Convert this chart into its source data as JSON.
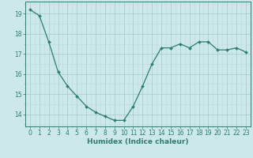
{
  "x": [
    0,
    1,
    2,
    3,
    4,
    5,
    6,
    7,
    8,
    9,
    10,
    11,
    12,
    13,
    14,
    15,
    16,
    17,
    18,
    19,
    20,
    21,
    22,
    23
  ],
  "y": [
    19.2,
    18.9,
    17.6,
    16.1,
    15.4,
    14.9,
    14.4,
    14.1,
    13.9,
    13.7,
    13.7,
    14.4,
    15.4,
    16.5,
    17.3,
    17.3,
    17.5,
    17.3,
    17.6,
    17.6,
    17.2,
    17.2,
    17.3,
    17.1
  ],
  "line_color": "#2e7d6e",
  "marker": "D",
  "marker_size": 2.0,
  "bg_color": "#cce8e8",
  "grid_color_major": "#aacfcf",
  "grid_color_minor": "#bbdddd",
  "ylabel_ticks": [
    14,
    15,
    16,
    17,
    18,
    19
  ],
  "xlabel": "Humidex (Indice chaleur)",
  "xlabel_fontsize": 6.5,
  "tick_fontsize": 5.5,
  "ylim": [
    13.4,
    19.6
  ],
  "xlim": [
    -0.5,
    23.5
  ]
}
